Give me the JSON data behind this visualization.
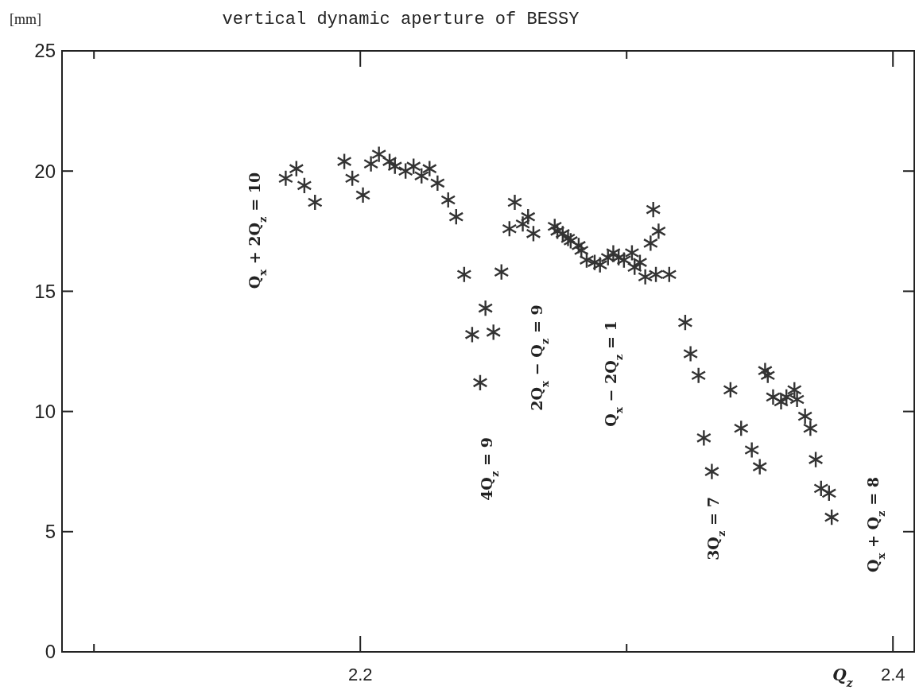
{
  "chart_data": {
    "type": "scatter",
    "title": "vertical dynamic aperture of BESSY",
    "xlabel": "Q$_{z}$",
    "ylabel": "[mm]",
    "x": [
      2.172,
      2.176,
      2.179,
      2.183,
      2.194,
      2.197,
      2.201,
      2.204,
      2.207,
      2.211,
      2.213,
      2.217,
      2.22,
      2.223,
      2.226,
      2.229,
      2.233,
      2.236,
      2.239,
      2.242,
      2.245,
      2.247,
      2.25,
      2.253,
      2.256,
      2.258,
      2.261,
      2.263,
      2.265,
      2.273,
      2.274,
      2.276,
      2.278,
      2.279,
      2.282,
      2.283,
      2.285,
      2.288,
      2.29,
      2.293,
      2.295,
      2.297,
      2.299,
      2.302,
      2.303,
      2.305,
      2.307,
      2.309,
      2.311,
      2.312,
      2.31,
      2.316,
      2.322,
      2.324,
      2.327,
      2.329,
      2.332,
      2.339,
      2.343,
      2.347,
      2.35,
      2.352,
      2.353,
      2.355,
      2.358,
      2.36,
      2.363,
      2.364,
      2.367,
      2.369,
      2.371,
      2.373,
      2.376,
      2.377
    ],
    "series": [
      {
        "color": "#333333",
        "values": [
          19.7,
          20.1,
          19.4,
          18.7,
          20.4,
          19.7,
          19.0,
          20.3,
          20.7,
          20.4,
          20.2,
          20.0,
          20.2,
          19.8,
          20.1,
          19.5,
          18.8,
          18.1,
          15.7,
          13.2,
          11.2,
          14.3,
          13.3,
          15.8,
          17.6,
          18.7,
          17.8,
          18.1,
          17.4,
          17.7,
          17.5,
          17.4,
          17.2,
          17.1,
          16.9,
          16.7,
          16.3,
          16.2,
          16.1,
          16.4,
          16.6,
          16.4,
          16.3,
          16.6,
          16.0,
          16.2,
          15.6,
          17.0,
          15.7,
          17.5,
          18.4,
          15.7,
          13.7,
          12.4,
          11.5,
          8.9,
          7.5,
          10.9,
          9.3,
          8.4,
          7.7,
          11.7,
          11.5,
          10.6,
          10.4,
          10.6,
          10.9,
          10.5,
          9.8,
          9.3,
          8.0,
          6.8,
          6.6,
          5.6
        ]
      }
    ],
    "marker": "cross",
    "xlim": [
      2.088,
      2.408
    ],
    "xticks": [
      {
        "value": 2.1,
        "label": null
      },
      2.2,
      {
        "value": 2.3,
        "label": null
      },
      2.4
    ],
    "ylim": [
      0,
      25
    ],
    "yticks": [
      0,
      5,
      10,
      15,
      20,
      25
    ],
    "grid": false,
    "annotations": [
      "Q$_{x}$ + 2Q$_{z}$ = 10",
      "4Q$_{z}$ = 9",
      "2Q$_{x}$ − Q$_{z}$ = 9",
      "Q$_{x}$ − 2Q$_{z}$ = 1",
      "3Q$_{z}$ = 7",
      "Q$_{x}$ + Q$_{z}$ = 8"
    ]
  }
}
